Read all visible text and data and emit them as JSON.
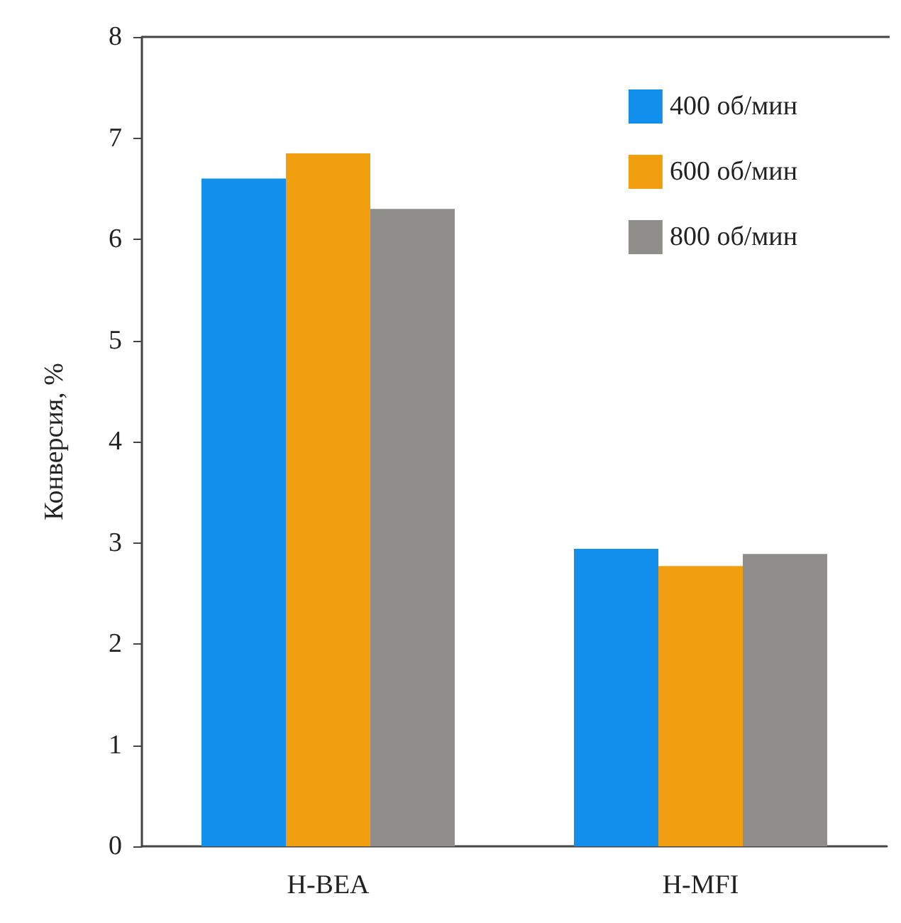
{
  "chart_data": {
    "type": "bar",
    "ylabel": "Конверсия, %",
    "categories": [
      "H-BEA",
      "H-MFI"
    ],
    "series": [
      {
        "name": "400 об/мин",
        "color": "#118fea",
        "values": [
          6.6,
          2.94
        ]
      },
      {
        "name": "600 об/мин",
        "color": "#f29f0f",
        "values": [
          6.85,
          2.77
        ]
      },
      {
        "name": "800 об/мин",
        "color": "#8f8e8a",
        "values": [
          6.3,
          2.89
        ]
      }
    ],
    "ylim": [
      0,
      8
    ],
    "yticks": [
      0,
      1,
      2,
      3,
      4,
      5,
      6,
      7,
      8
    ],
    "grid": false,
    "legend": "top right"
  }
}
